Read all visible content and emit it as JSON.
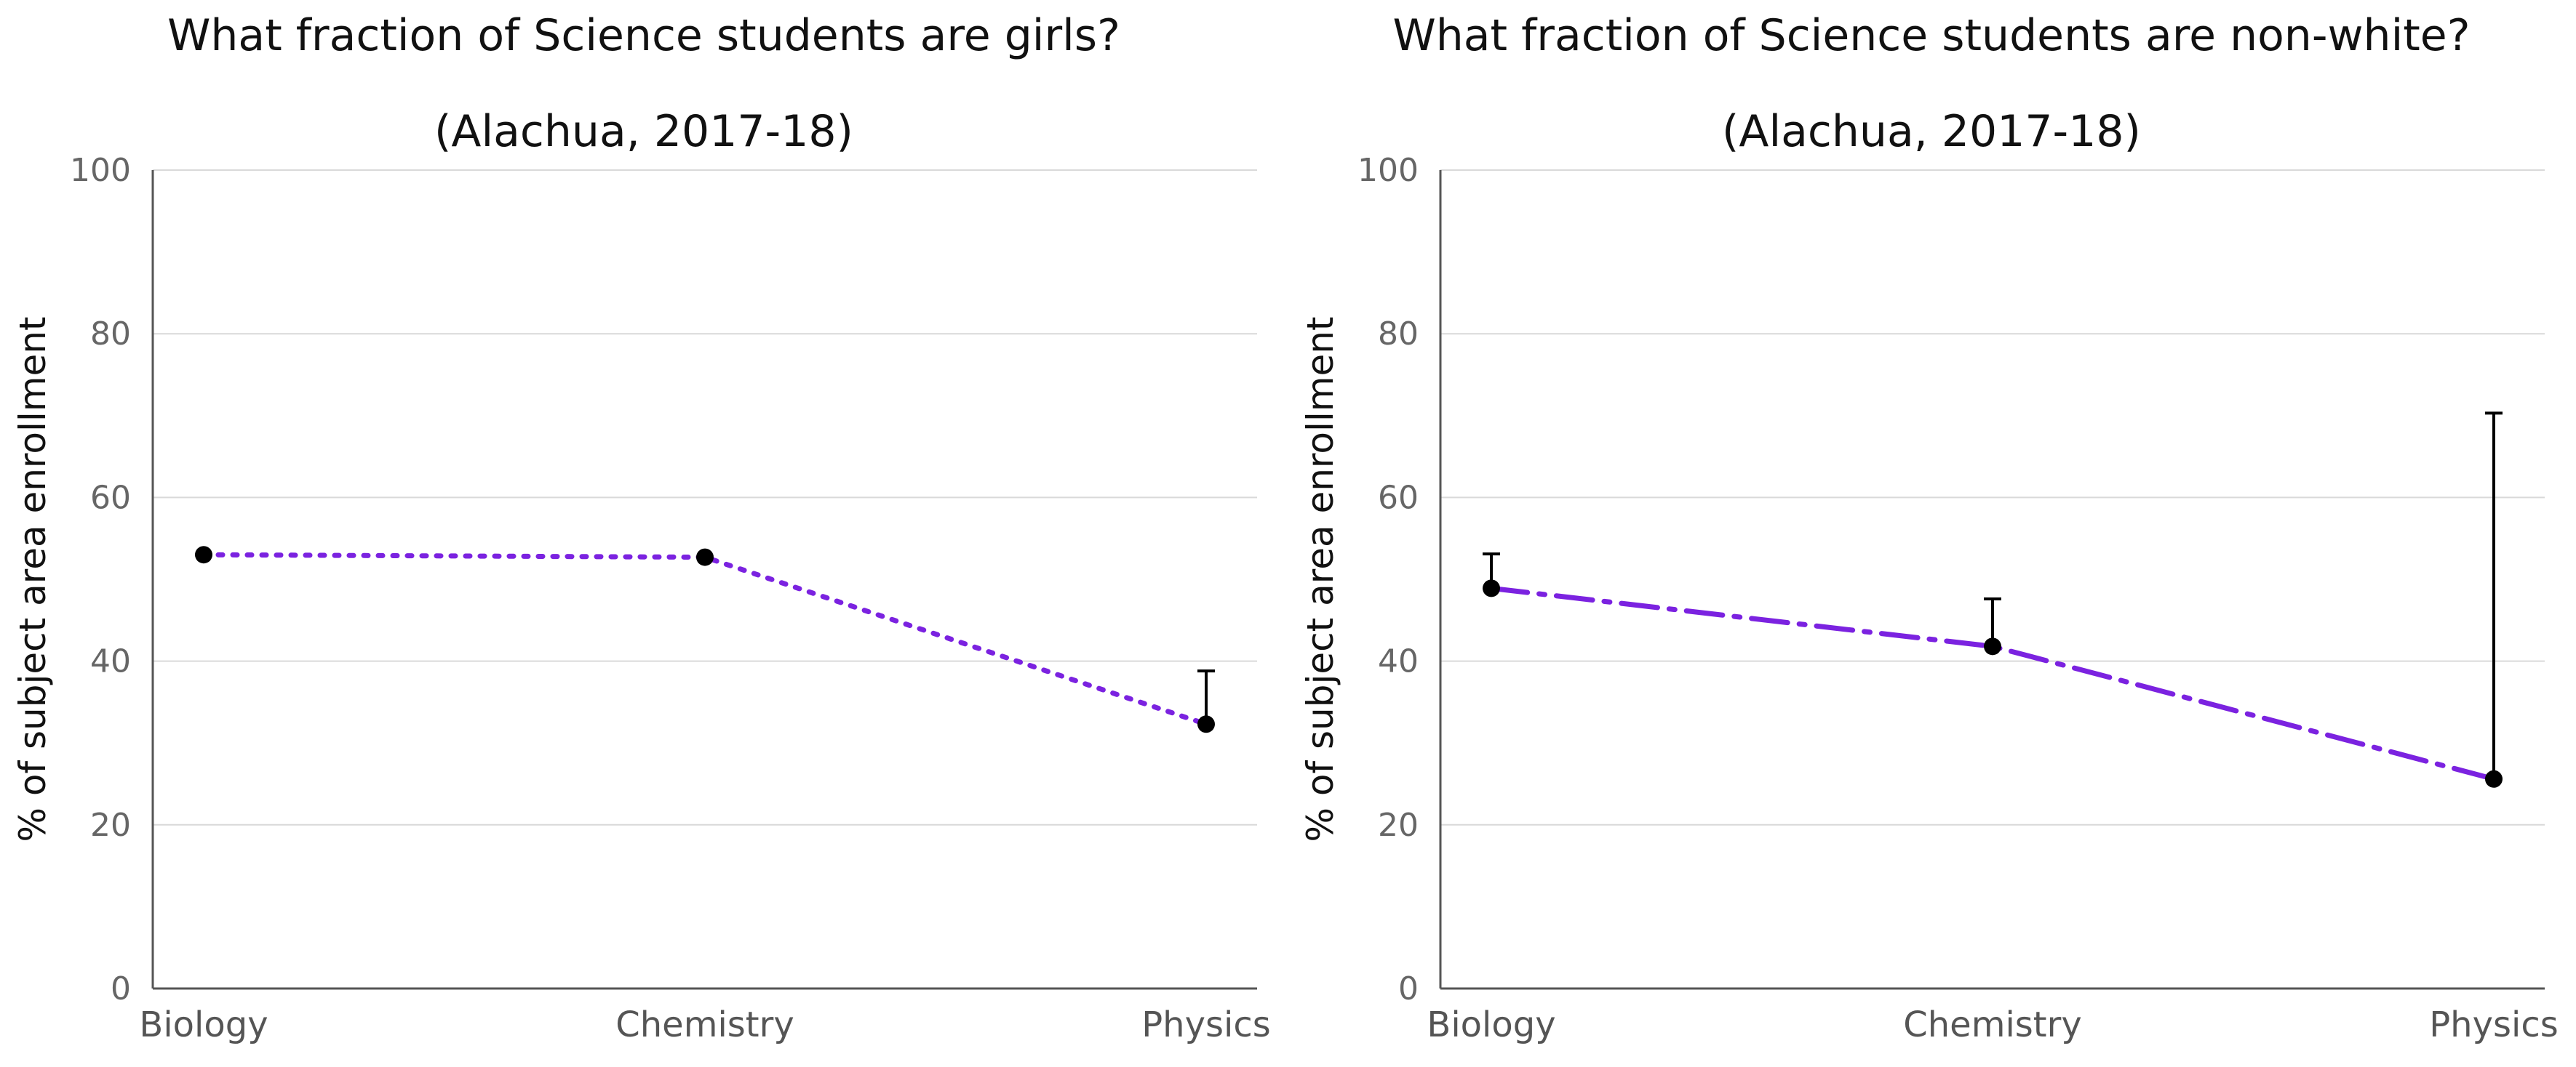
{
  "chart_data": [
    {
      "type": "line",
      "title": "What fraction of Science students are girls?",
      "subtitle": "(Alachua, 2017-18)",
      "xlabel": "",
      "ylabel": "% of subject area enrollment",
      "categories": [
        "Biology",
        "Chemistry",
        "Physics"
      ],
      "ylim": [
        0,
        100
      ],
      "yticks": [
        "0",
        "20",
        "40",
        "60",
        "80",
        "100"
      ],
      "grid": true,
      "line_style": "dotted",
      "color": "#7B22E0",
      "series": [
        {
          "values": [
            53.0,
            52.7,
            32.3
          ],
          "error_upper": [
            null,
            null,
            38.8
          ]
        }
      ]
    },
    {
      "type": "line",
      "title": "What fraction of Science students are non-white?",
      "subtitle": "(Alachua, 2017-18)",
      "xlabel": "",
      "ylabel": "% of subject area enrollment",
      "categories": [
        "Biology",
        "Chemistry",
        "Physics"
      ],
      "ylim": [
        0,
        100
      ],
      "yticks": [
        "0",
        "20",
        "40",
        "60",
        "80",
        "100"
      ],
      "grid": true,
      "line_style": "dash-dot",
      "color": "#7B22E0",
      "series": [
        {
          "values": [
            48.9,
            41.8,
            25.6
          ],
          "error_upper": [
            53.1,
            47.6,
            70.3
          ]
        }
      ]
    }
  ]
}
